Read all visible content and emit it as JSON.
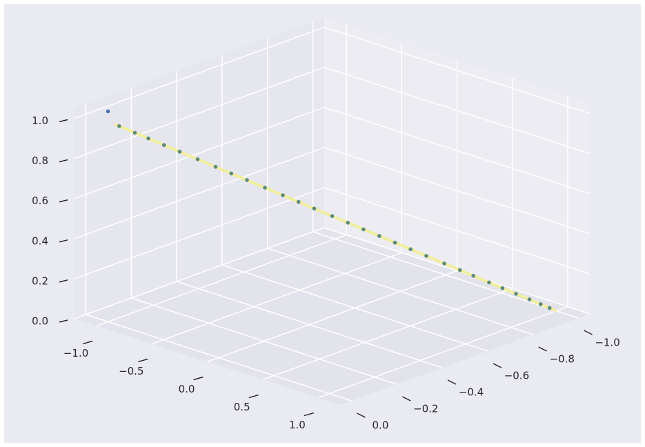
{
  "chart_data": {
    "type": "scatter3d",
    "xlim": [
      -1.2,
      1.2
    ],
    "ylim": [
      -1.05,
      0.05
    ],
    "zlim": [
      0,
      1.05
    ],
    "xticks": [
      {
        "value": -1,
        "label": "−1.0"
      },
      {
        "value": -0.5,
        "label": "−0.5"
      },
      {
        "value": 0,
        "label": "0.0"
      },
      {
        "value": 0.5,
        "label": "0.5"
      },
      {
        "value": 1,
        "label": "1.0"
      }
    ],
    "yticks": [
      {
        "value": 0,
        "label": "0.0"
      },
      {
        "value": -0.2,
        "label": "−0.2"
      },
      {
        "value": -0.4,
        "label": "−0.4"
      },
      {
        "value": -0.6,
        "label": "−0.6"
      },
      {
        "value": -0.8,
        "label": "−0.8"
      },
      {
        "value": -1,
        "label": "−1.0"
      }
    ],
    "zticks": [
      {
        "value": 0,
        "label": "0.0"
      },
      {
        "value": 0.2,
        "label": "0.2"
      },
      {
        "value": 0.4,
        "label": "0.4"
      },
      {
        "value": 0.6,
        "label": "0.6"
      },
      {
        "value": 0.8,
        "label": "0.8"
      },
      {
        "value": 1,
        "label": "1.0"
      }
    ],
    "grid": true,
    "line": {
      "color": "#f0ee9c",
      "x": [
        -0.97,
        1.0
      ],
      "y": [
        -0.015,
        -1.0
      ],
      "z": [
        0.985,
        0.0
      ]
    },
    "series": [
      {
        "color": "#4c72b0",
        "x": [
          -1.0
        ],
        "y": [
          0.0
        ],
        "z": [
          1.05
        ]
      },
      {
        "color": "#5f8a78",
        "x": [
          -0.95,
          -0.88,
          -0.82,
          -0.75,
          -0.68,
          -0.6,
          -0.52,
          -0.45,
          -0.38,
          -0.3,
          -0.22,
          -0.15,
          -0.08,
          0.0,
          0.07,
          0.14,
          0.21,
          0.28,
          0.35,
          0.42,
          0.5,
          0.57,
          0.63,
          0.7,
          0.76,
          0.82,
          0.88,
          0.93,
          0.97
        ],
        "y": [
          -0.025,
          -0.06,
          -0.09,
          -0.125,
          -0.16,
          -0.2,
          -0.24,
          -0.275,
          -0.31,
          -0.35,
          -0.39,
          -0.425,
          -0.46,
          -0.5,
          -0.535,
          -0.57,
          -0.605,
          -0.64,
          -0.675,
          -0.71,
          -0.75,
          -0.785,
          -0.815,
          -0.85,
          -0.88,
          -0.91,
          -0.94,
          -0.965,
          -0.985
        ],
        "z": [
          0.975,
          0.94,
          0.91,
          0.875,
          0.84,
          0.8,
          0.76,
          0.725,
          0.69,
          0.65,
          0.61,
          0.575,
          0.54,
          0.5,
          0.465,
          0.43,
          0.395,
          0.36,
          0.325,
          0.29,
          0.25,
          0.215,
          0.185,
          0.15,
          0.12,
          0.09,
          0.06,
          0.035,
          0.015
        ]
      }
    ]
  }
}
